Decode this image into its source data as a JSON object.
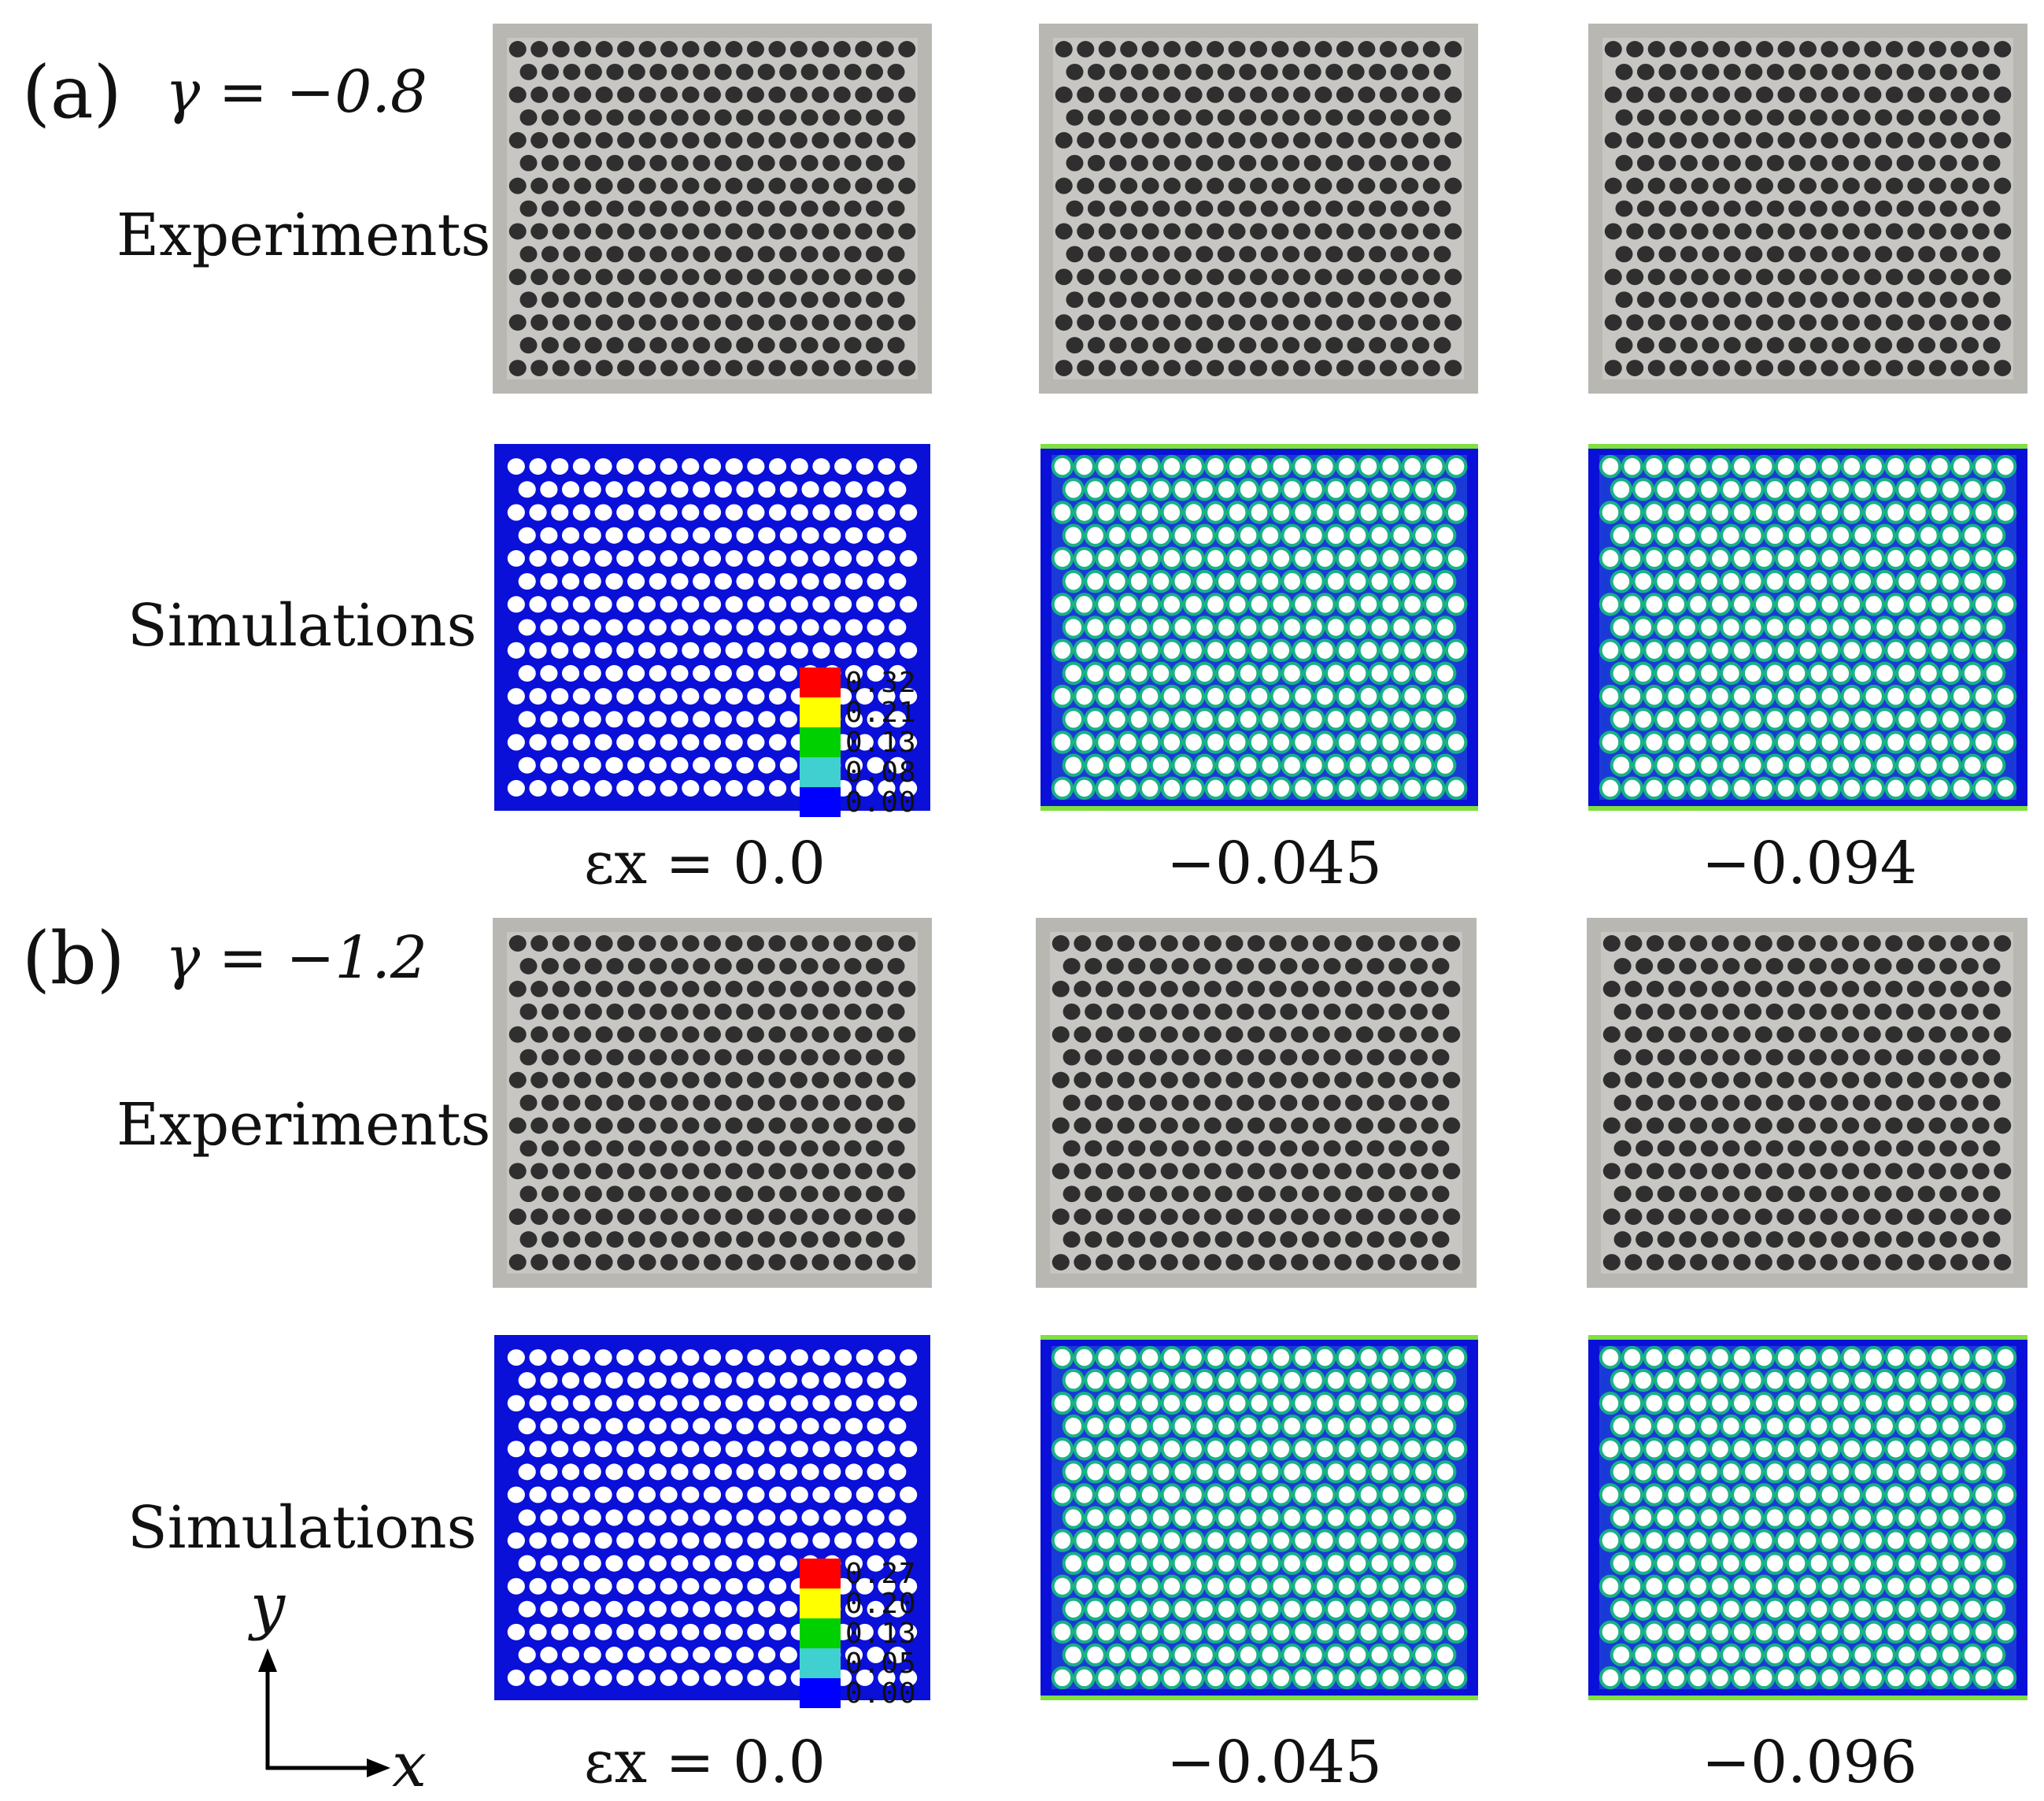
{
  "panels": [
    {
      "label": "(a)",
      "gamma": "γ = −0.8",
      "experiments_label": "Experiments",
      "simulations_label": "Simulations",
      "strains": [
        "εx = 0.0",
        "−0.045",
        "−0.094"
      ],
      "legend": [
        "0.32",
        "0.21",
        "0.13",
        "0.08",
        "0.00"
      ]
    },
    {
      "label": "(b)",
      "gamma": "γ = −1.2",
      "experiments_label": "Experiments",
      "simulations_label": "Simulations",
      "strains": [
        "εx = 0.0",
        "−0.045",
        "−0.096"
      ],
      "legend": [
        "0.27",
        "0.20",
        "0.13",
        "0.05",
        "0.00"
      ]
    }
  ],
  "axes": {
    "x": "x",
    "y": "y"
  },
  "legend_colors": [
    "#ff0000",
    "#ffff00",
    "#00d000",
    "#40d0d0",
    "#0000ff"
  ],
  "colors": {
    "sim_base": "#0a10d8",
    "exp_bg": "#b9b7b2",
    "hole_dark": "#2f2f2f"
  }
}
